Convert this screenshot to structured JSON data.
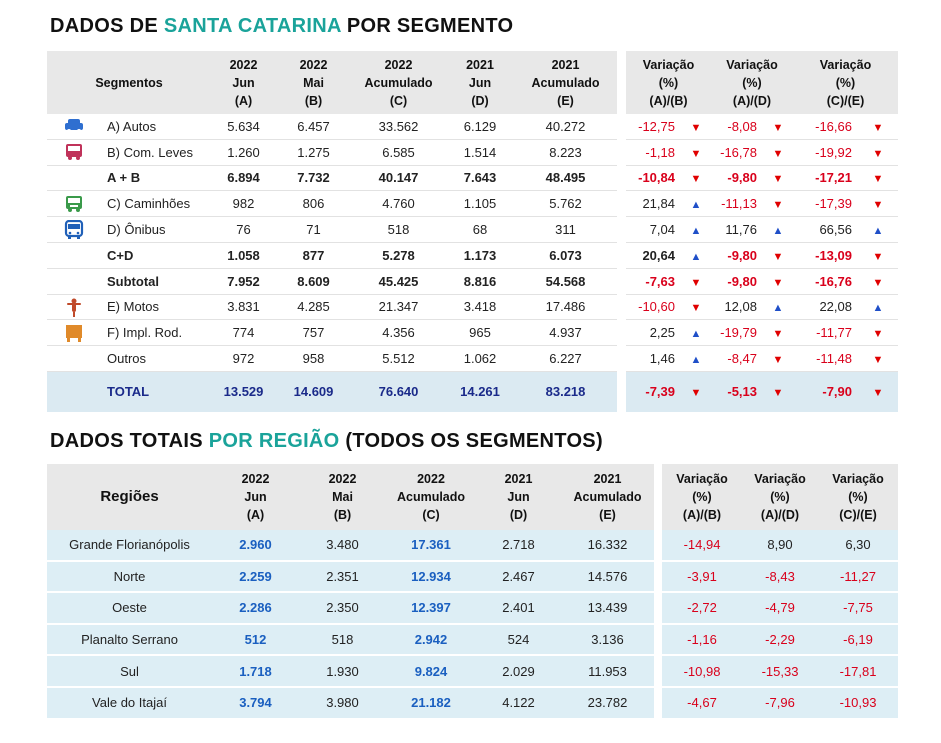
{
  "seg_title": {
    "pre": "DADOS DE ",
    "accent": "SANTA CATARINA",
    "post": " POR SEGMENTO"
  },
  "seg_headers": {
    "segmentos": "Segmentos",
    "cols": [
      {
        "l1": "2022",
        "l2": "Jun",
        "l3": "(A)"
      },
      {
        "l1": "2022",
        "l2": "Mai",
        "l3": "(B)"
      },
      {
        "l1": "2022",
        "l2": "Acumulado",
        "l3": "(C)"
      },
      {
        "l1": "2021",
        "l2": "Jun",
        "l3": "(D)"
      },
      {
        "l1": "2021",
        "l2": "Acumulado",
        "l3": "(E)"
      }
    ],
    "var": [
      {
        "l1": "Variação",
        "l2": "(%)",
        "l3": "(A)/(B)"
      },
      {
        "l1": "Variação",
        "l2": "(%)",
        "l3": "(A)/(D)"
      },
      {
        "l1": "Variação",
        "l2": "(%)",
        "l3": "(C)/(E)"
      }
    ]
  },
  "seg_rows": [
    {
      "icon": "car-icon",
      "color": "#2f6fd0",
      "label": "A) Autos",
      "v": [
        "5.634",
        "6.457",
        "33.562",
        "6.129",
        "40.272"
      ],
      "var": [
        "-12,75",
        "-8,08",
        "-16,66"
      ],
      "dir": [
        "dn",
        "dn",
        "dn"
      ]
    },
    {
      "icon": "van-icon",
      "color": "#c0325a",
      "label": "B) Com. Leves",
      "v": [
        "1.260",
        "1.275",
        "6.585",
        "1.514",
        "8.223"
      ],
      "var": [
        "-1,18",
        "-16,78",
        "-19,92"
      ],
      "dir": [
        "dn",
        "dn",
        "dn"
      ]
    },
    {
      "icon": "",
      "label": "A + B",
      "bold": true,
      "v": [
        "6.894",
        "7.732",
        "40.147",
        "7.643",
        "48.495"
      ],
      "var": [
        "-10,84",
        "-9,80",
        "-17,21"
      ],
      "dir": [
        "dn",
        "dn",
        "dn"
      ]
    },
    {
      "icon": "truck-icon",
      "color": "#3a9a4a",
      "label": "C) Caminhões",
      "v": [
        "982",
        "806",
        "4.760",
        "1.105",
        "5.762"
      ],
      "var": [
        "21,84",
        "-11,13",
        "-17,39"
      ],
      "dir": [
        "up",
        "dn",
        "dn"
      ]
    },
    {
      "icon": "bus-icon",
      "color": "#2060b8",
      "label": "D) Ônibus",
      "v": [
        "76",
        "71",
        "518",
        "68",
        "311"
      ],
      "var": [
        "7,04",
        "11,76",
        "66,56"
      ],
      "dir": [
        "up",
        "up",
        "up"
      ]
    },
    {
      "icon": "",
      "label": "C+D",
      "bold": true,
      "v": [
        "1.058",
        "877",
        "5.278",
        "1.173",
        "6.073"
      ],
      "var": [
        "20,64",
        "-9,80",
        "-13,09"
      ],
      "dir": [
        "up",
        "dn",
        "dn"
      ]
    },
    {
      "icon": "",
      "label": "Subtotal",
      "bold": true,
      "v": [
        "7.952",
        "8.609",
        "45.425",
        "8.816",
        "54.568"
      ],
      "var": [
        "-7,63",
        "-9,80",
        "-16,76"
      ],
      "dir": [
        "dn",
        "dn",
        "dn"
      ]
    },
    {
      "icon": "motorcycle-icon",
      "color": "#c04a2a",
      "label": "E) Motos",
      "v": [
        "3.831",
        "4.285",
        "21.347",
        "3.418",
        "17.486"
      ],
      "var": [
        "-10,60",
        "12,08",
        "22,08"
      ],
      "dir": [
        "dn",
        "up",
        "up"
      ]
    },
    {
      "icon": "trailer-icon",
      "color": "#e08a2a",
      "label": "F) Impl. Rod.",
      "v": [
        "774",
        "757",
        "4.356",
        "965",
        "4.937"
      ],
      "var": [
        "2,25",
        "-19,79",
        "-11,77"
      ],
      "dir": [
        "up",
        "dn",
        "dn"
      ]
    },
    {
      "icon": "",
      "label": "Outros",
      "v": [
        "972",
        "958",
        "5.512",
        "1.062",
        "6.227"
      ],
      "var": [
        "1,46",
        "-8,47",
        "-11,48"
      ],
      "dir": [
        "up",
        "dn",
        "dn"
      ]
    }
  ],
  "seg_total": {
    "label": "TOTAL",
    "v": [
      "13.529",
      "14.609",
      "76.640",
      "14.261",
      "83.218"
    ],
    "var": [
      "-7,39",
      "-5,13",
      "-7,90"
    ],
    "dir": [
      "dn",
      "dn",
      "dn"
    ]
  },
  "reg_title": {
    "pre": "DADOS TOTAIS ",
    "accent": "POR REGIÃO",
    "post": " (TODOS OS SEGMENTOS)"
  },
  "reg_headers": {
    "regioes": "Regiões",
    "cols": [
      {
        "l1": "2022",
        "l2": "Jun",
        "l3": "(A)"
      },
      {
        "l1": "2022",
        "l2": "Mai",
        "l3": "(B)"
      },
      {
        "l1": "2022",
        "l2": "Acumulado",
        "l3": "(C)"
      },
      {
        "l1": "2021",
        "l2": "Jun",
        "l3": "(D)"
      },
      {
        "l1": "2021",
        "l2": "Acumulado",
        "l3": "(E)"
      }
    ],
    "var": [
      {
        "l1": "Variação",
        "l2": "(%)",
        "l3": "(A)/(B)"
      },
      {
        "l1": "Variação",
        "l2": "(%)",
        "l3": "(A)/(D)"
      },
      {
        "l1": "Variação",
        "l2": "(%)",
        "l3": "(C)/(E)"
      }
    ]
  },
  "reg_rows": [
    {
      "label": "Grande Florianópolis",
      "v": [
        "2.960",
        "3.480",
        "17.361",
        "2.718",
        "16.332"
      ],
      "var": [
        "-14,94",
        "8,90",
        "6,30"
      ]
    },
    {
      "label": "Norte",
      "v": [
        "2.259",
        "2.351",
        "12.934",
        "2.467",
        "14.576"
      ],
      "var": [
        "-3,91",
        "-8,43",
        "-11,27"
      ]
    },
    {
      "label": "Oeste",
      "v": [
        "2.286",
        "2.350",
        "12.397",
        "2.401",
        "13.439"
      ],
      "var": [
        "-2,72",
        "-4,79",
        "-7,75"
      ]
    },
    {
      "label": "Planalto Serrano",
      "v": [
        "512",
        "518",
        "2.942",
        "524",
        "3.136"
      ],
      "var": [
        "-1,16",
        "-2,29",
        "-6,19"
      ]
    },
    {
      "label": "Sul",
      "v": [
        "1.718",
        "1.930",
        "9.824",
        "2.029",
        "11.953"
      ],
      "var": [
        "-10,98",
        "-15,33",
        "-17,81"
      ]
    },
    {
      "label": "Vale do Itajaí",
      "v": [
        "3.794",
        "3.980",
        "21.182",
        "4.122",
        "23.782"
      ],
      "var": [
        "-4,67",
        "-7,96",
        "-10,93"
      ]
    }
  ]
}
